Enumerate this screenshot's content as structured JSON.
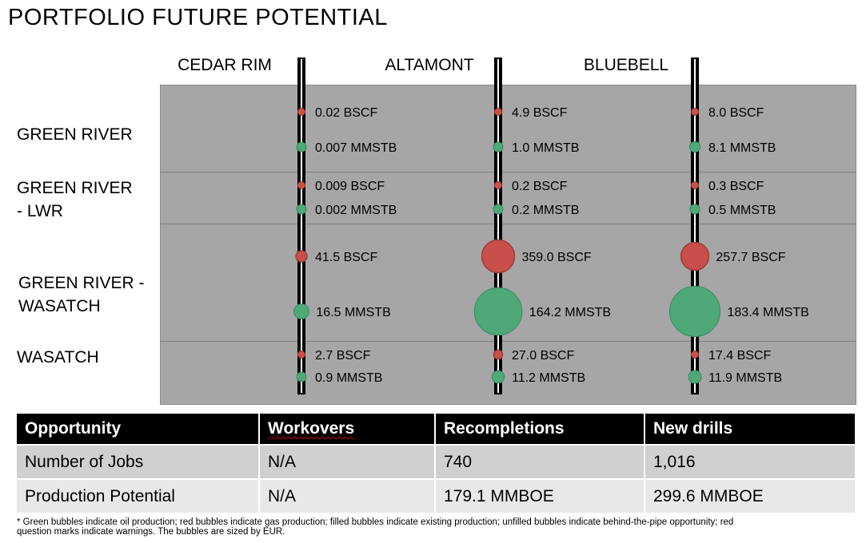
{
  "title": "PORTFOLIO FUTURE POTENTIAL",
  "chart_data": {
    "type": "scatter",
    "columns": [
      "CEDAR RIM",
      "ALTAMONT",
      "BLUEBELL"
    ],
    "rows": [
      {
        "label": "GREEN RIVER",
        "lines": [
          "GREEN RIVER"
        ]
      },
      {
        "label": "GREEN RIVER - LWR",
        "lines": [
          "GREEN RIVER",
          "- LWR"
        ]
      },
      {
        "label": "GREEN RIVER - WASATCH",
        "lines": [
          "GREEN RIVER -",
          "WASATCH"
        ]
      },
      {
        "label": "WASATCH",
        "lines": [
          "WASATCH"
        ]
      }
    ],
    "series": [
      {
        "kind": "gas",
        "color": "#c9504a",
        "points": [
          {
            "column": "CEDAR RIM",
            "row": "GREEN RIVER",
            "value": 0.02,
            "label": "0.02 BSCF"
          },
          {
            "column": "ALTAMONT",
            "row": "GREEN RIVER",
            "value": 4.9,
            "label": "4.9 BSCF"
          },
          {
            "column": "BLUEBELL",
            "row": "GREEN RIVER",
            "value": 8.0,
            "label": "8.0 BSCF"
          },
          {
            "column": "CEDAR RIM",
            "row": "GREEN RIVER - LWR",
            "value": 0.009,
            "label": "0.009 BSCF"
          },
          {
            "column": "ALTAMONT",
            "row": "GREEN RIVER - LWR",
            "value": 0.2,
            "label": "0.2 BSCF"
          },
          {
            "column": "BLUEBELL",
            "row": "GREEN RIVER - LWR",
            "value": 0.3,
            "label": "0.3 BSCF"
          },
          {
            "column": "CEDAR RIM",
            "row": "GREEN RIVER - WASATCH",
            "value": 41.5,
            "label": "41.5 BSCF"
          },
          {
            "column": "ALTAMONT",
            "row": "GREEN RIVER - WASATCH",
            "value": 359.0,
            "label": "359.0 BSCF"
          },
          {
            "column": "BLUEBELL",
            "row": "GREEN RIVER - WASATCH",
            "value": 257.7,
            "label": "257.7 BSCF"
          },
          {
            "column": "CEDAR RIM",
            "row": "WASATCH",
            "value": 2.7,
            "label": "2.7 BSCF"
          },
          {
            "column": "ALTAMONT",
            "row": "WASATCH",
            "value": 27.0,
            "label": "27.0 BSCF"
          },
          {
            "column": "BLUEBELL",
            "row": "WASATCH",
            "value": 17.4,
            "label": "17.4 BSCF"
          }
        ]
      },
      {
        "kind": "oil",
        "color": "#4ea878",
        "points": [
          {
            "column": "CEDAR RIM",
            "row": "GREEN RIVER",
            "value": 0.007,
            "label": "0.007 MMSTB"
          },
          {
            "column": "ALTAMONT",
            "row": "GREEN RIVER",
            "value": 1.0,
            "label": "1.0 MMSTB"
          },
          {
            "column": "BLUEBELL",
            "row": "GREEN RIVER",
            "value": 8.1,
            "label": "8.1 MMSTB"
          },
          {
            "column": "CEDAR RIM",
            "row": "GREEN RIVER - LWR",
            "value": 0.002,
            "label": "0.002 MMSTB"
          },
          {
            "column": "ALTAMONT",
            "row": "GREEN RIVER - LWR",
            "value": 0.2,
            "label": "0.2 MMSTB"
          },
          {
            "column": "BLUEBELL",
            "row": "GREEN RIVER - LWR",
            "value": 0.5,
            "label": "0.5 MMSTB"
          },
          {
            "column": "CEDAR RIM",
            "row": "GREEN RIVER - WASATCH",
            "value": 16.5,
            "label": "16.5 MMSTB"
          },
          {
            "column": "ALTAMONT",
            "row": "GREEN RIVER - WASATCH",
            "value": 164.2,
            "label": "164.2 MMSTB"
          },
          {
            "column": "BLUEBELL",
            "row": "GREEN RIVER - WASATCH",
            "value": 183.4,
            "label": "183.4 MMSTB"
          },
          {
            "column": "CEDAR RIM",
            "row": "WASATCH",
            "value": 0.9,
            "label": "0.9 MMSTB"
          },
          {
            "column": "ALTAMONT",
            "row": "WASATCH",
            "value": 11.2,
            "label": "11.2 MMSTB"
          },
          {
            "column": "BLUEBELL",
            "row": "WASATCH",
            "value": 11.9,
            "label": "11.9 MMSTB"
          }
        ]
      }
    ]
  },
  "table": {
    "headers": [
      "Opportunity",
      "Workovers",
      "Recompletions",
      "New drills"
    ],
    "rows": [
      [
        "Number of Jobs",
        "N/A",
        "740",
        "1,016"
      ],
      [
        "Production Potential",
        "N/A",
        "179.1 MMBOE",
        "299.6 MMBOE"
      ]
    ]
  },
  "footnote": "* Green bubbles indicate oil production; red bubbles indicate gas production; filled bubbles indicate existing production; unfilled bubbles indicate behind-the-pipe opportunity; red question marks indicate warnings. The bubbles are sized by EUR."
}
